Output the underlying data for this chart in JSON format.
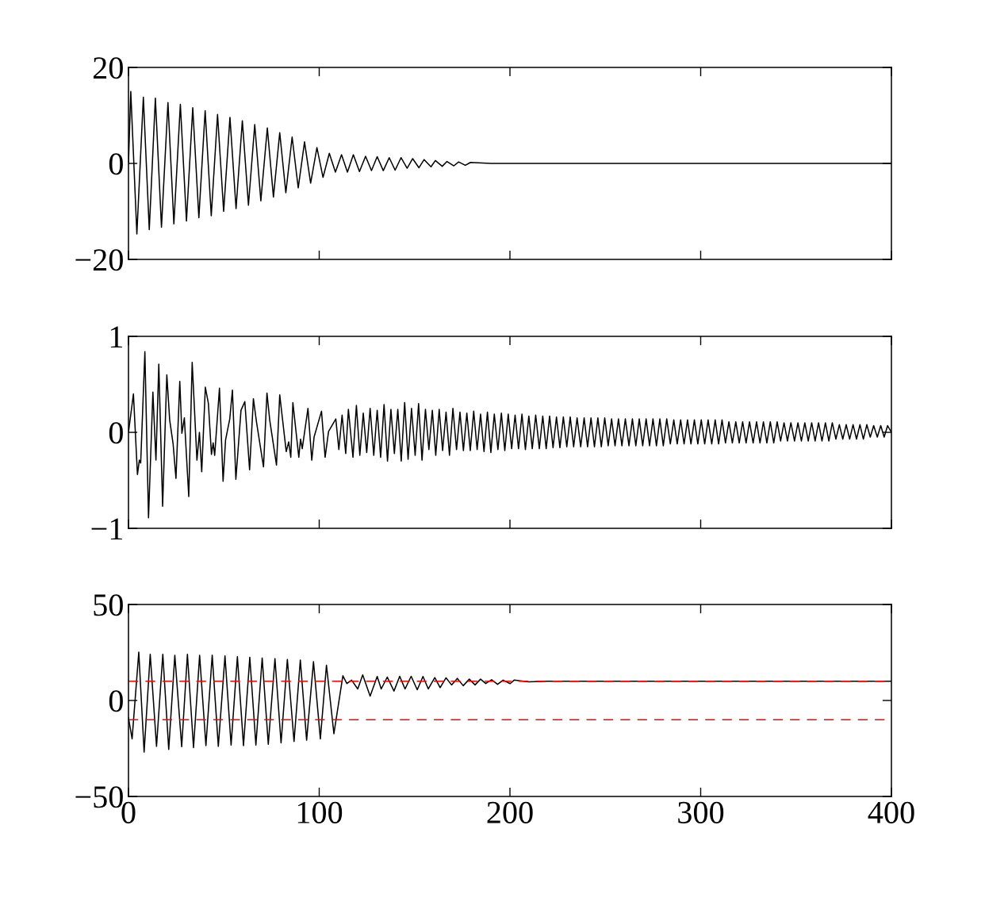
{
  "chart_data": [
    {
      "type": "line",
      "xlim": [
        0,
        400
      ],
      "ylim": [
        -20,
        20
      ],
      "xticks": [
        0,
        100,
        200,
        300,
        400
      ],
      "yticks": [
        {
          "value": -20,
          "label": "−20"
        },
        0,
        20
      ],
      "tick_labels": "y",
      "line_style": "solid",
      "series": [
        {
          "color": "#000000",
          "x": [
            0,
            1.2,
            4.4,
            7.8,
            10.9,
            14.1,
            17.3,
            20.7,
            23.8,
            27.2,
            30.4,
            33.7,
            36.9,
            40.2,
            43.4,
            46.7,
            49.9,
            53.2,
            56.4,
            59.7,
            62.9,
            66.2,
            69.4,
            72.8,
            76.0,
            79.3,
            82.5,
            85.8,
            89.0,
            92.3,
            95.5,
            98.8,
            102.0,
            105.3,
            108.5,
            111.7,
            114.8,
            117.9,
            121.1,
            124.3,
            127.4,
            130.4,
            133.6,
            136.7,
            139.8,
            142.9,
            146.1,
            149.0,
            152.3,
            155.0,
            158.6,
            160.9,
            164.5,
            167.0,
            170.6,
            173.1,
            176.6,
            179.3,
            190,
            400
          ],
          "values": [
            0,
            15.0,
            -14.7,
            13.8,
            -13.8,
            13.6,
            -13.3,
            12.7,
            -12.6,
            12.3,
            -12.0,
            11.6,
            -11.3,
            11.0,
            -10.9,
            10.2,
            -10.0,
            9.6,
            -9.4,
            8.9,
            -8.7,
            8.1,
            -7.8,
            7.4,
            -7.0,
            6.4,
            -6.1,
            5.5,
            -5.1,
            4.5,
            -4.1,
            3.3,
            -2.9,
            2.1,
            -1.8,
            1.8,
            -1.8,
            1.8,
            -1.7,
            1.5,
            -1.5,
            1.4,
            -1.5,
            1.2,
            -1.4,
            1.2,
            -1.0,
            1.0,
            -0.9,
            0.8,
            -0.7,
            0.6,
            -0.6,
            0.4,
            -0.5,
            0.3,
            -0.4,
            0.2,
            0.0,
            0.0
          ]
        }
      ]
    },
    {
      "type": "line",
      "xlim": [
        0,
        400
      ],
      "ylim": [
        -1,
        1
      ],
      "xticks": [
        0,
        100,
        200,
        300,
        400
      ],
      "yticks": [
        {
          "value": -1,
          "label": "−1"
        },
        0,
        1
      ],
      "tick_labels": "y",
      "line_style": "solid",
      "series": [
        {
          "color": "#000000",
          "x": [
            0,
            2.6,
            4.7,
            5.7,
            6.4,
            8.6,
            10.5,
            12.8,
            14.4,
            15.9,
            17.9,
            20.1,
            21.6,
            23.4,
            24.9,
            26.9,
            28.0,
            29.3,
            31.6,
            33.4,
            35.9,
            37.2,
            38.4,
            40.3,
            41.9,
            43.5,
            44.4,
            45.2,
            47.7,
            49.6,
            50.9,
            53.1,
            54.5,
            56.3,
            59.0,
            61.0,
            63.5,
            65.5,
            67.1,
            70.8,
            72.6,
            74.1,
            77.6,
            79.3,
            82.7,
            84.0,
            85.1,
            86.2,
            89.3,
            90.2,
            91.1,
            94.1,
            96.1,
            97.3,
            101.2,
            103.1,
            104.9,
            108.7,
            110.3,
            112.0,
            113.9,
            115.3,
            117.7,
            119.5,
            121.3,
            123.1,
            124.9,
            126.7,
            128.6,
            130.4,
            132.2,
            134.0,
            135.8,
            137.6,
            139.4,
            141.2,
            143.0,
            144.8,
            146.6,
            148.4,
            150.3,
            152.1,
            153.9,
            155.7,
            157.5,
            159.3,
            161.1,
            162.9,
            164.7,
            166.5,
            168.3,
            170.1,
            172.0,
            173.8,
            175.6,
            177.4,
            179.2,
            181.0,
            182.8,
            184.6,
            186.4,
            188.2,
            190.0,
            191.8,
            193.7,
            195.5,
            197.3,
            199.1,
            200.9,
            202.7,
            204.5,
            206.3,
            208.1,
            209.9,
            211.7,
            213.5,
            215.4,
            217.2,
            219.0,
            220.8,
            222.6,
            224.4,
            226.2,
            228.0,
            229.8,
            231.6,
            233.4,
            235.2,
            237.1,
            238.9,
            240.7,
            242.5,
            244.3,
            246.1,
            247.9,
            249.7,
            251.5,
            253.3,
            255.1,
            256.9,
            258.7,
            260.5,
            262.4,
            264.2,
            266.0,
            267.8,
            269.6,
            271.4,
            273.2,
            275.0,
            276.8,
            278.6,
            280.4,
            282.2,
            284.1,
            285.9,
            287.7,
            289.5,
            291.3,
            293.1,
            294.9,
            296.7,
            298.5,
            300.3,
            302.1,
            303.9,
            305.8,
            307.6,
            309.4,
            311.2,
            313.0,
            314.8,
            316.6,
            318.4,
            320.2,
            322.0,
            323.8,
            325.6,
            327.5,
            329.3,
            331.1,
            332.9,
            334.7,
            336.5,
            338.3,
            340.1,
            341.9,
            343.7,
            345.5,
            347.3,
            349.2,
            351.0,
            352.8,
            354.6,
            356.4,
            358.2,
            360.0,
            361.8,
            363.6,
            365.4,
            367.2,
            369.0,
            370.9,
            372.7,
            374.5,
            376.3,
            378.1,
            379.9,
            381.7,
            383.5,
            385.3,
            387.1,
            388.9,
            390.7,
            392.6,
            394.4,
            396.2,
            398.0,
            400
          ],
          "values": [
            0,
            0.4,
            -0.44,
            -0.29,
            -0.32,
            0.84,
            -0.89,
            0.42,
            -0.29,
            0.71,
            -0.77,
            0.6,
            0.13,
            -0.12,
            -0.48,
            0.53,
            -0.01,
            0.15,
            -0.67,
            0.73,
            -0.29,
            0.0,
            -0.41,
            0.47,
            0.3,
            -0.23,
            -0.11,
            -0.24,
            0.46,
            -0.51,
            -0.08,
            0.14,
            0.44,
            -0.49,
            0.23,
            0.32,
            -0.39,
            0.35,
            0.11,
            -0.36,
            0.41,
            0.12,
            -0.34,
            0.39,
            -0.2,
            -0.1,
            -0.26,
            0.31,
            -0.26,
            -0.07,
            -0.17,
            0.25,
            -0.29,
            -0.05,
            0.22,
            -0.26,
            0.01,
            0.14,
            -0.18,
            0.18,
            -0.22,
            0.24,
            -0.26,
            0.28,
            -0.24,
            0.2,
            -0.21,
            0.25,
            -0.24,
            0.23,
            -0.26,
            0.29,
            -0.3,
            0.24,
            -0.22,
            0.24,
            -0.3,
            0.31,
            -0.28,
            0.25,
            -0.24,
            0.3,
            -0.29,
            0.24,
            -0.18,
            0.23,
            -0.24,
            0.24,
            -0.19,
            0.21,
            -0.24,
            0.25,
            -0.18,
            0.21,
            -0.19,
            0.2,
            -0.19,
            0.22,
            -0.18,
            0.19,
            -0.2,
            0.21,
            -0.21,
            0.19,
            -0.18,
            0.2,
            -0.19,
            0.19,
            -0.17,
            0.18,
            -0.17,
            0.19,
            -0.18,
            0.17,
            -0.17,
            0.18,
            -0.17,
            0.17,
            -0.17,
            0.17,
            -0.16,
            0.16,
            -0.16,
            0.16,
            -0.15,
            0.16,
            -0.15,
            0.15,
            -0.15,
            0.15,
            -0.15,
            0.15,
            -0.15,
            0.15,
            -0.15,
            0.15,
            -0.14,
            0.14,
            -0.14,
            0.14,
            -0.14,
            0.14,
            -0.14,
            0.14,
            -0.14,
            0.14,
            -0.14,
            0.14,
            -0.14,
            0.14,
            -0.14,
            0.14,
            -0.14,
            0.14,
            -0.12,
            0.13,
            -0.12,
            0.13,
            -0.12,
            0.13,
            -0.12,
            0.13,
            -0.12,
            0.13,
            -0.12,
            0.13,
            -0.12,
            0.13,
            -0.12,
            0.13,
            -0.11,
            0.11,
            -0.11,
            0.11,
            -0.11,
            0.11,
            -0.11,
            0.11,
            -0.11,
            0.11,
            -0.11,
            0.11,
            -0.11,
            0.11,
            -0.11,
            0.11,
            -0.09,
            0.1,
            -0.09,
            0.1,
            -0.09,
            0.1,
            -0.09,
            0.1,
            -0.09,
            0.1,
            -0.09,
            0.1,
            -0.09,
            0.1,
            -0.09,
            0.1,
            -0.07,
            0.08,
            -0.07,
            0.08,
            -0.07,
            0.08,
            -0.07,
            0.08,
            -0.07,
            0.08,
            -0.05,
            0.07,
            -0.05,
            0.07,
            -0.05,
            0.07,
            0.0
          ]
        }
      ]
    },
    {
      "type": "line",
      "xlim": [
        0,
        400
      ],
      "ylim": [
        -50,
        50
      ],
      "xticks": [
        0,
        100,
        200,
        300,
        400
      ],
      "yticks": [
        {
          "value": -50,
          "label": "−50"
        },
        0,
        50
      ],
      "line_style": "solid",
      "ref_lines": [
        {
          "axis": "y",
          "value": 10,
          "color": "#ff0000",
          "line_style": "dashed"
        },
        {
          "axis": "y",
          "value": -10,
          "color": "#ff0000",
          "line_style": "dashed"
        }
      ],
      "series": [
        {
          "color": "#000000",
          "x": [
            0,
            1.9,
            5.4,
            8.2,
            11.4,
            14.7,
            18.0,
            21.1,
            24.3,
            27.9,
            30.9,
            34.1,
            37.3,
            40.6,
            43.9,
            47.1,
            50.6,
            53.8,
            57.1,
            60.3,
            63.6,
            66.8,
            70.1,
            73.3,
            76.8,
            80.0,
            83.3,
            86.8,
            90.1,
            93.4,
            97.0,
            100.6,
            103.8,
            107.7,
            112.4,
            114.5,
            117.0,
            120.2,
            122.8,
            126.7,
            130.4,
            132.5,
            135.7,
            139.2,
            142.2,
            145.0,
            148.2,
            151.4,
            154.4,
            157.2,
            160.6,
            163.4,
            166.5,
            169.4,
            172.4,
            175.5,
            178.7,
            181.7,
            184.6,
            187.3,
            190.4,
            193.5,
            196.4,
            200.1,
            202.2,
            209.6,
            220,
            400
          ],
          "values": [
            -9,
            -20.0,
            25.2,
            -26.9,
            24.1,
            -23.9,
            24.1,
            -25.5,
            23.5,
            -24.1,
            24.1,
            -24.6,
            23.5,
            -23.5,
            23.6,
            -23.9,
            23.2,
            -23.2,
            22.8,
            -23.5,
            22.5,
            -23.2,
            22.1,
            -22.8,
            21.8,
            -22.1,
            21.4,
            -21.4,
            21.1,
            -20.7,
            20.2,
            -20.0,
            18.4,
            -17.3,
            12.9,
            8.8,
            10.6,
            6.0,
            13.3,
            2.3,
            12.5,
            6.0,
            12.2,
            4.9,
            12.6,
            6.0,
            12.6,
            5.6,
            12.5,
            6.0,
            11.9,
            6.7,
            11.8,
            8.1,
            11.5,
            7.7,
            11.1,
            8.1,
            11.1,
            8.8,
            10.8,
            8.4,
            10.6,
            8.8,
            10.6,
            9.7,
            10.0,
            10.0
          ]
        }
      ]
    }
  ]
}
